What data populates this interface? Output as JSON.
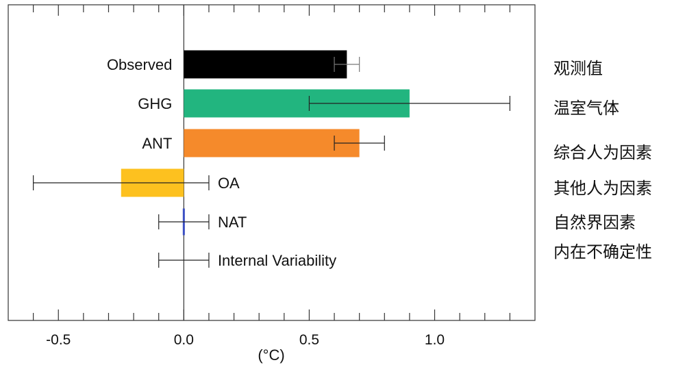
{
  "chart_data": {
    "type": "bar",
    "orientation": "horizontal",
    "title": "",
    "xlabel": "(°C)",
    "ylabel": "",
    "xlim": [
      -0.7,
      1.4
    ],
    "xticks": [
      -0.6,
      -0.5,
      -0.4,
      -0.3,
      -0.2,
      -0.1,
      0.0,
      0.1,
      0.2,
      0.3,
      0.4,
      0.5,
      0.6,
      0.7,
      0.8,
      0.9,
      1.0,
      1.1,
      1.2,
      1.3
    ],
    "xtick_labels": [
      {
        "value": -0.5,
        "label": "-0.5"
      },
      {
        "value": 0.0,
        "label": "0.0"
      },
      {
        "value": 0.5,
        "label": "0.5"
      },
      {
        "value": 1.0,
        "label": "1.0"
      }
    ],
    "grid": false,
    "categories": [
      "Observed",
      "GHG",
      "ANT",
      "OA",
      "NAT",
      "Internal Variability"
    ],
    "bars": [
      {
        "name": "Observed",
        "value": 0.65,
        "err_low": 0.6,
        "err_high": 0.7,
        "color": "#000000",
        "label_side": "left",
        "zh": "观测值"
      },
      {
        "name": "GHG",
        "value": 0.9,
        "err_low": 0.5,
        "err_high": 1.3,
        "color": "#22b57f",
        "label_side": "left",
        "zh": "温室气体"
      },
      {
        "name": "ANT",
        "value": 0.7,
        "err_low": 0.6,
        "err_high": 0.8,
        "color": "#f58a2b",
        "label_side": "left",
        "zh": "综合人为因素"
      },
      {
        "name": "OA",
        "value": -0.25,
        "err_low": -0.6,
        "err_high": 0.1,
        "color": "#fdc11f",
        "label_side": "right",
        "zh": "其他人为因素"
      },
      {
        "name": "NAT",
        "value": 0.0,
        "err_low": -0.1,
        "err_high": 0.1,
        "color": "#3b4fc4",
        "label_side": "right",
        "zh": "自然界因素"
      },
      {
        "name": "Internal Variability",
        "value": 0.0,
        "err_low": -0.1,
        "err_high": 0.1,
        "color": "#000000",
        "label_side": "right",
        "zh": "内在不确定性"
      }
    ]
  }
}
